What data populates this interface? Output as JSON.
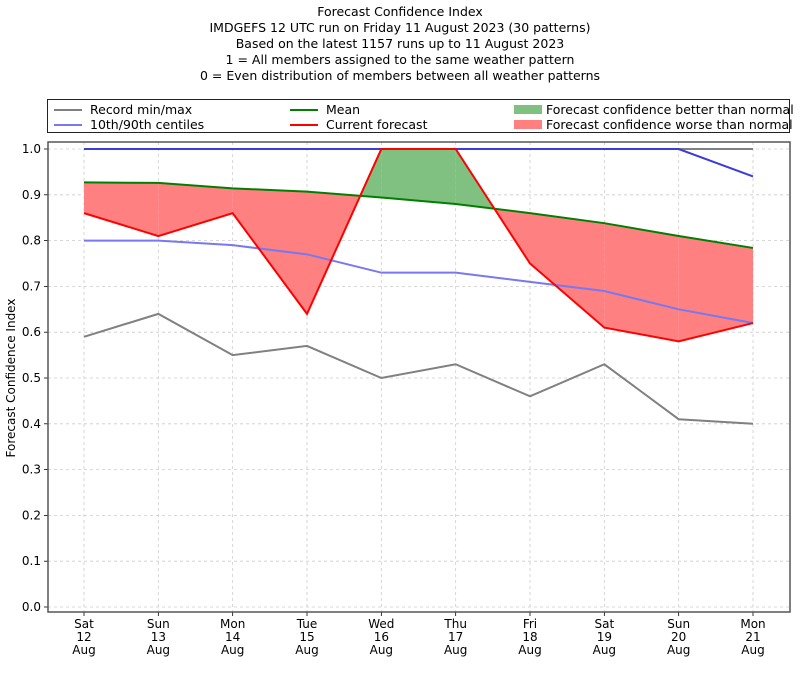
{
  "chart_data": {
    "type": "line",
    "title_lines": [
      "Forecast Confidence Index",
      "IMDGEFS 12 UTC run on Friday 11 August 2023 (30 patterns)",
      "Based on the latest 1157 runs up to 11 August 2023",
      "1 = All members assigned to the same weather pattern",
      "0 = Even distribution of members between all weather patterns"
    ],
    "xlabel": "",
    "ylabel": "Forecast Confidence Index",
    "ylim": [
      0.0,
      1.0
    ],
    "yticks": [
      "0.0",
      "0.1",
      "0.2",
      "0.3",
      "0.4",
      "0.5",
      "0.6",
      "0.7",
      "0.8",
      "0.9",
      "1.0"
    ],
    "grid": true,
    "legend_position": "top",
    "categories": [
      {
        "day": "Sat",
        "date": "12",
        "month": "Aug"
      },
      {
        "day": "Sun",
        "date": "13",
        "month": "Aug"
      },
      {
        "day": "Mon",
        "date": "14",
        "month": "Aug"
      },
      {
        "day": "Tue",
        "date": "15",
        "month": "Aug"
      },
      {
        "day": "Wed",
        "date": "16",
        "month": "Aug"
      },
      {
        "day": "Thu",
        "date": "17",
        "month": "Aug"
      },
      {
        "day": "Fri",
        "date": "18",
        "month": "Aug"
      },
      {
        "day": "Sat",
        "date": "19",
        "month": "Aug"
      },
      {
        "day": "Sun",
        "date": "20",
        "month": "Aug"
      },
      {
        "day": "Mon",
        "date": "21",
        "month": "Aug"
      }
    ],
    "series": [
      {
        "name": "Record min",
        "legend": "Record min/max",
        "color": "#808080",
        "values": [
          0.59,
          0.64,
          0.55,
          0.57,
          0.5,
          0.53,
          0.46,
          0.53,
          0.41,
          0.4
        ]
      },
      {
        "name": "Record max",
        "color": "#808080",
        "values": [
          1.0,
          1.0,
          1.0,
          1.0,
          1.0,
          1.0,
          1.0,
          1.0,
          1.0,
          1.0
        ]
      },
      {
        "name": "10th centile",
        "legend": "10th/90th centiles",
        "color": "#7878f0",
        "values": [
          0.8,
          0.8,
          0.79,
          0.77,
          0.73,
          0.73,
          0.71,
          0.69,
          0.65,
          0.62
        ]
      },
      {
        "name": "90th centile",
        "color": "#3c3cd8",
        "values": [
          1.0,
          1.0,
          1.0,
          1.0,
          1.0,
          1.0,
          1.0,
          1.0,
          1.0,
          0.94
        ]
      },
      {
        "name": "Mean",
        "legend": "Mean",
        "color": "#008000",
        "values": [
          0.927,
          0.926,
          0.914,
          0.907,
          0.894,
          0.88,
          0.86,
          0.838,
          0.81,
          0.784
        ]
      },
      {
        "name": "Current forecast",
        "legend": "Current forecast",
        "color": "#ff0000",
        "values": [
          0.86,
          0.81,
          0.86,
          0.64,
          1.0,
          1.0,
          0.75,
          0.61,
          0.58,
          0.62
        ]
      }
    ],
    "fills": [
      {
        "name": "Forecast confidence better than normal",
        "color": "#80c080"
      },
      {
        "name": "Forecast confidence worse than normal",
        "color": "#ff8080"
      }
    ]
  }
}
